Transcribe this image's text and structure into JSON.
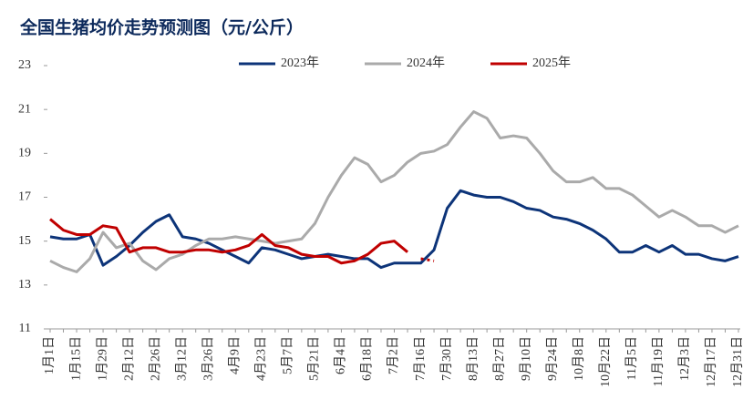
{
  "chart_data": {
    "type": "line",
    "title": "全国生猪均价走势预测图（元/公斤）",
    "categories": [
      "1月1日",
      null,
      "1月15日",
      null,
      "1月29日",
      null,
      "2月12日",
      null,
      "2月26日",
      null,
      "3月12日",
      null,
      "3月26日",
      null,
      "4月9日",
      null,
      "4月23日",
      null,
      "5月7日",
      null,
      "5月21日",
      null,
      "6月4日",
      null,
      "6月18日",
      null,
      "7月2日",
      null,
      "7月16日",
      null,
      "7月30日",
      null,
      "8月13日",
      null,
      "8月27日",
      null,
      "9月10日",
      null,
      "9月24日",
      null,
      "10月8日",
      null,
      "10月22日",
      null,
      "11月5日",
      null,
      "11月19日",
      null,
      "12月3日",
      null,
      "12月17日",
      null,
      "12月31日"
    ],
    "series": [
      {
        "name": "2023年",
        "color": "#0d3479",
        "values": [
          15.2,
          15.1,
          15.1,
          15.3,
          13.9,
          14.3,
          14.8,
          15.4,
          15.9,
          16.2,
          15.2,
          15.1,
          14.9,
          14.6,
          14.3,
          14.0,
          14.7,
          14.6,
          14.4,
          14.2,
          14.3,
          14.4,
          14.3,
          14.2,
          14.2,
          13.8,
          14.0,
          14.0,
          14.0,
          14.6,
          16.5,
          17.3,
          17.1,
          17.0,
          17.0,
          16.8,
          16.5,
          16.4,
          16.1,
          16.0,
          15.8,
          15.5,
          15.1,
          14.5,
          14.5,
          14.8,
          14.5,
          14.8,
          14.4,
          14.4,
          14.2,
          14.1,
          14.3
        ]
      },
      {
        "name": "2024年",
        "color": "#aaaaaa",
        "values": [
          14.1,
          13.8,
          13.6,
          14.2,
          15.4,
          14.7,
          14.9,
          14.1,
          13.7,
          14.2,
          14.4,
          14.8,
          15.1,
          15.1,
          15.2,
          15.1,
          15.0,
          14.9,
          15.0,
          15.1,
          15.8,
          17.0,
          18.0,
          18.8,
          18.5,
          17.7,
          18.0,
          18.6,
          19.0,
          19.1,
          19.4,
          20.2,
          20.9,
          20.6,
          19.7,
          19.8,
          19.7,
          19.0,
          18.2,
          17.7,
          17.7,
          17.9,
          17.4,
          17.4,
          17.1,
          16.6,
          16.1,
          16.4,
          16.1,
          15.7,
          15.7,
          15.4,
          15.7
        ]
      },
      {
        "name": "2025年",
        "color": "#c00000",
        "dashed_from": 27,
        "values": [
          16.0,
          15.5,
          15.3,
          15.3,
          15.7,
          15.6,
          14.5,
          14.7,
          14.7,
          14.5,
          14.5,
          14.6,
          14.6,
          14.5,
          14.6,
          14.8,
          15.3,
          14.8,
          14.7,
          14.4,
          14.3,
          14.3,
          14.0,
          14.1,
          14.4,
          14.9,
          15.0,
          14.5,
          14.2,
          14.1,
          null,
          null,
          null,
          null,
          null,
          null,
          null,
          null,
          null,
          null,
          null,
          null,
          null,
          null,
          null,
          null,
          null,
          null,
          null,
          null,
          null,
          null,
          null
        ]
      }
    ],
    "ylim": [
      11,
      23
    ],
    "yticks": [
      11,
      13,
      15,
      17,
      19,
      21,
      23
    ],
    "grid": false,
    "legend": "top"
  }
}
